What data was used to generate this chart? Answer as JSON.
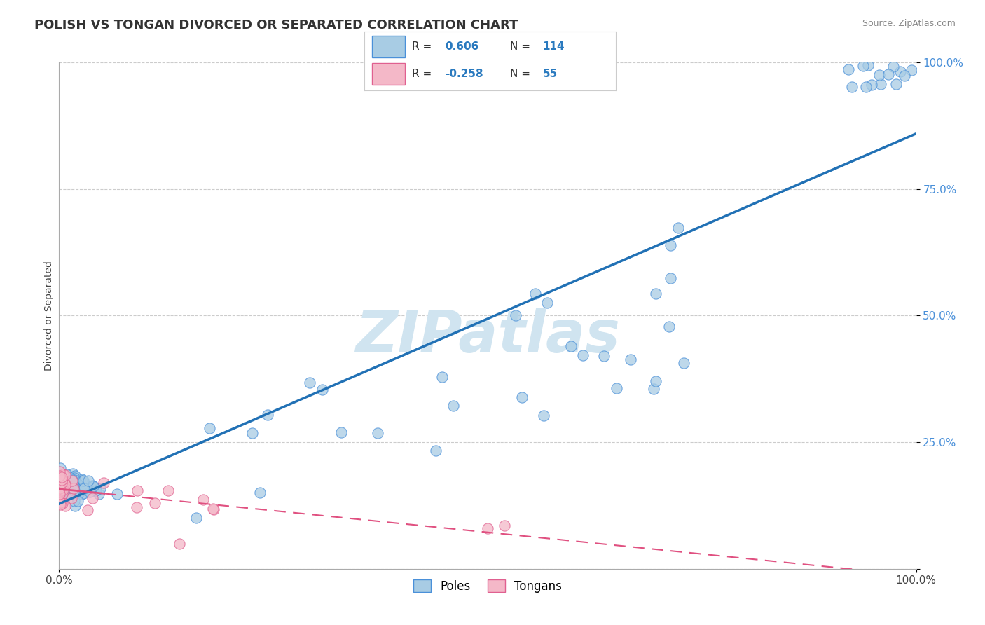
{
  "title": "POLISH VS TONGAN DIVORCED OR SEPARATED CORRELATION CHART",
  "source": "Source: ZipAtlas.com",
  "ylabel": "Divorced or Separated",
  "xlim": [
    0,
    1
  ],
  "ylim": [
    0,
    1
  ],
  "ytick_positions": [
    0.0,
    0.25,
    0.5,
    0.75,
    1.0
  ],
  "ytick_labels": [
    "",
    "25.0%",
    "50.0%",
    "75.0%",
    "100.0%"
  ],
  "xtick_labels": [
    "0.0%",
    "100.0%"
  ],
  "xtick_positions": [
    0.0,
    1.0
  ],
  "poles_R": 0.606,
  "poles_N": 114,
  "tongans_R": -0.258,
  "tongans_N": 55,
  "blue_scatter_color": "#a8cce4",
  "blue_edge_color": "#4a90d9",
  "blue_line_color": "#2171b5",
  "pink_scatter_color": "#f4b8c8",
  "pink_edge_color": "#e06090",
  "pink_line_color": "#e05080",
  "grid_color": "#cccccc",
  "watermark": "ZIPatlas",
  "watermark_color": "#d0e4f0",
  "background_color": "#ffffff",
  "title_fontsize": 13,
  "label_fontsize": 10,
  "tick_fontsize": 11,
  "right_tick_color": "#4a90d9",
  "seed": 1234
}
